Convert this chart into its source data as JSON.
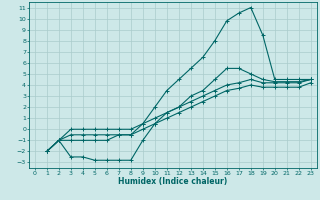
{
  "xlabel": "Humidex (Indice chaleur)",
  "bg_color": "#cde8e8",
  "grid_color": "#aacccc",
  "line_color": "#006666",
  "xlim": [
    -0.5,
    23.5
  ],
  "ylim": [
    -3.5,
    11.5
  ],
  "xticks": [
    0,
    1,
    2,
    3,
    4,
    5,
    6,
    7,
    8,
    9,
    10,
    11,
    12,
    13,
    14,
    15,
    16,
    17,
    18,
    19,
    20,
    21,
    22,
    23
  ],
  "yticks": [
    -3,
    -2,
    -1,
    0,
    1,
    2,
    3,
    4,
    5,
    6,
    7,
    8,
    9,
    10,
    11
  ],
  "line1_x": [
    1,
    2,
    3,
    4,
    5,
    6,
    7,
    8,
    9,
    10,
    11,
    12,
    13,
    14,
    15,
    16,
    17,
    18,
    19,
    20,
    21,
    22,
    23
  ],
  "line1_y": [
    -2,
    -1,
    -1,
    -1,
    -1,
    -1,
    -0.5,
    -0.5,
    0.5,
    2,
    3.5,
    4.5,
    5.5,
    6.5,
    8,
    9.8,
    10.5,
    11,
    8.5,
    4.5,
    4.5,
    4.5,
    4.5
  ],
  "line2_x": [
    1,
    2,
    3,
    4,
    5,
    6,
    7,
    8,
    9,
    10,
    11,
    12,
    13,
    14,
    15,
    16,
    17,
    18,
    19,
    20,
    21,
    22,
    23
  ],
  "line2_y": [
    -2,
    -1,
    -0.5,
    -0.5,
    -0.5,
    -0.5,
    -0.5,
    -0.5,
    0.0,
    0.5,
    1.0,
    1.5,
    2.0,
    2.5,
    3.0,
    3.5,
    3.7,
    4.0,
    3.8,
    3.8,
    3.8,
    3.8,
    4.2
  ],
  "line3_x": [
    1,
    2,
    3,
    4,
    5,
    6,
    7,
    8,
    9,
    10,
    11,
    12,
    13,
    14,
    15,
    16,
    17,
    18,
    19,
    20,
    21,
    22,
    23
  ],
  "line3_y": [
    -2,
    -1,
    0.0,
    0.0,
    0.0,
    0.0,
    0.0,
    0.0,
    0.5,
    1.0,
    1.5,
    2.0,
    2.5,
    3.0,
    3.5,
    4.0,
    4.2,
    4.5,
    4.2,
    4.2,
    4.2,
    4.2,
    4.5
  ],
  "line4_x": [
    1,
    2,
    3,
    4,
    5,
    6,
    7,
    8,
    9,
    10,
    11,
    12,
    13,
    14,
    15,
    16,
    17,
    18,
    19,
    20,
    21,
    22,
    23
  ],
  "line4_y": [
    -2,
    -1,
    -2.5,
    -2.5,
    -2.8,
    -2.8,
    -2.8,
    -2.8,
    -1.0,
    0.5,
    1.5,
    2.0,
    3.0,
    3.5,
    4.5,
    5.5,
    5.5,
    5.0,
    4.5,
    4.3,
    4.3,
    4.3,
    4.5
  ]
}
